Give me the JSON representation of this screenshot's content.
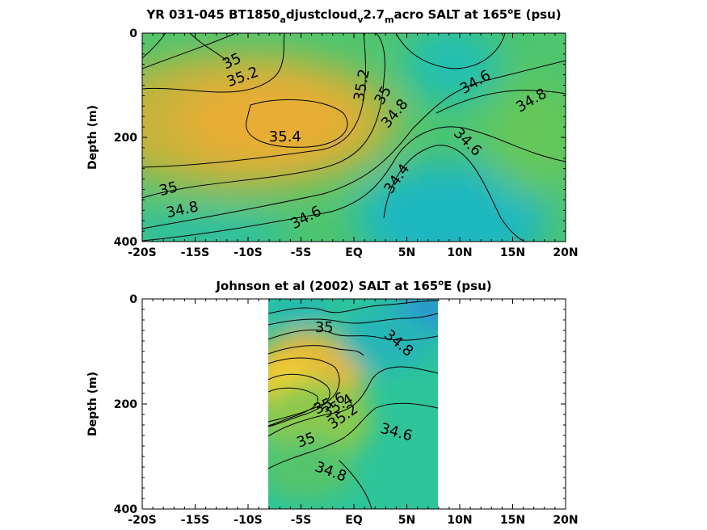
{
  "chart_data": [
    {
      "type": "heatmap",
      "title_parts": [
        "YR 031-045 BT1850",
        "a",
        "djustcloud",
        "v",
        "2.7",
        "m",
        "acro SALT at 165",
        "o",
        "E (psu)"
      ],
      "ylabel": "Depth (m)",
      "x_ticks": [
        "-20S",
        "-15S",
        "-10S",
        "-5S",
        "EQ",
        "5N",
        "10N",
        "15N",
        "20N"
      ],
      "x_tick_values": [
        -20,
        -15,
        -10,
        -5,
        0,
        5,
        10,
        15,
        20
      ],
      "y_ticks": [
        "0",
        "200",
        "400"
      ],
      "y_tick_values": [
        0,
        200,
        400
      ],
      "xlim": [
        -20,
        20
      ],
      "ylim": [
        0,
        400
      ],
      "y_reversed": true,
      "data_extent": [
        -20,
        20
      ],
      "contour_labels": [
        {
          "text": "35",
          "x": -11.5,
          "y": 55,
          "angle": -25
        },
        {
          "text": "35.2",
          "x": -10.5,
          "y": 85,
          "angle": -20
        },
        {
          "text": "35.4",
          "x": -6.5,
          "y": 200,
          "angle": 0
        },
        {
          "text": "35.2",
          "x": 0.8,
          "y": 100,
          "angle": -80
        },
        {
          "text": "35",
          "x": 2.8,
          "y": 120,
          "angle": -60
        },
        {
          "text": "34.8",
          "x": 3.9,
          "y": 155,
          "angle": -50
        },
        {
          "text": "34.6",
          "x": 11.5,
          "y": 95,
          "angle": -30
        },
        {
          "text": "34.8",
          "x": 16.8,
          "y": 130,
          "angle": -30
        },
        {
          "text": "34.6",
          "x": 10.7,
          "y": 210,
          "angle": 45
        },
        {
          "text": "34.4",
          "x": 4.1,
          "y": 280,
          "angle": -55
        },
        {
          "text": "35",
          "x": -17.5,
          "y": 300,
          "angle": -15
        },
        {
          "text": "34.8",
          "x": -16.2,
          "y": 340,
          "angle": -12
        },
        {
          "text": "34.6",
          "x": -4.5,
          "y": 355,
          "angle": -28
        }
      ]
    },
    {
      "type": "heatmap",
      "title_parts": [
        "Johnson et al (2002) SALT at 165",
        "o",
        "E (psu)"
      ],
      "ylabel": "Depth (m)",
      "x_ticks": [
        "-20S",
        "-15S",
        "-10S",
        "-5S",
        "EQ",
        "5N",
        "10N",
        "15N",
        "20N"
      ],
      "x_tick_values": [
        -20,
        -15,
        -10,
        -5,
        0,
        5,
        10,
        15,
        20
      ],
      "y_ticks": [
        "0",
        "200",
        "400"
      ],
      "y_tick_values": [
        0,
        200,
        400
      ],
      "xlim": [
        -20,
        20
      ],
      "ylim": [
        0,
        400
      ],
      "y_reversed": true,
      "data_extent": [
        -8,
        8
      ],
      "contour_labels": [
        {
          "text": "35",
          "x": -2.8,
          "y": 55,
          "angle": 0
        },
        {
          "text": "34.8",
          "x": 4.2,
          "y": 85,
          "angle": 40
        },
        {
          "text": "35.6",
          "x": -2.3,
          "y": 200,
          "angle": -25
        },
        {
          "text": "35.4",
          "x": -1.5,
          "y": 205,
          "angle": -30
        },
        {
          "text": "35.2",
          "x": -1.0,
          "y": 225,
          "angle": -35
        },
        {
          "text": "34.6",
          "x": 4.0,
          "y": 255,
          "angle": 15
        },
        {
          "text": "35",
          "x": -4.5,
          "y": 270,
          "angle": -20
        },
        {
          "text": "34.8",
          "x": -2.2,
          "y": 330,
          "angle": 20
        }
      ]
    }
  ]
}
